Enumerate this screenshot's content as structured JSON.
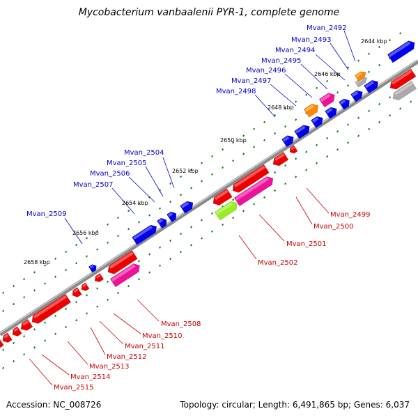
{
  "title": "Mycobacterium vanbaalenii PYR-1, complete genome",
  "footer": {
    "accession": "Accession: NC_008726",
    "summary": "Topology: circular; Length: 6,491,865 bp; Genes: 6,037"
  },
  "colors": {
    "blue": "#0000ee",
    "red": "#ee0000",
    "pink": "#ee1199",
    "orange": "#ff8800",
    "green": "#99ee22",
    "gray": "#aaaaaa",
    "backbone": "#8a8a8a",
    "dots": "#117711",
    "label_blue": "#0000cc",
    "label_red": "#cc0000"
  },
  "ticks": [
    "2644 kbp",
    "2646 kbp",
    "2648 kbp",
    "2650 kbp",
    "2652 kbp",
    "2654 kbp",
    "2656 kbp",
    "2658 kbp"
  ],
  "labels_top": [
    "Mvan_2492",
    "Mvan_2493",
    "Mvan_2494",
    "Mvan_2495",
    "Mvan_2496",
    "Mvan_2497",
    "Mvan_2498",
    "Mvan_2504",
    "Mvan_2505",
    "Mvan_2506",
    "Mvan_2507",
    "Mvan_2509"
  ],
  "labels_bottom": [
    "Mvan_2499",
    "Mvan_2500",
    "Mvan_2501",
    "Mvan_2502",
    "Mvan_2508",
    "Mvan_2510",
    "Mvan_2511",
    "Mvan_2512",
    "Mvan_2513",
    "Mvan_2514",
    "Mvan_2515"
  ]
}
